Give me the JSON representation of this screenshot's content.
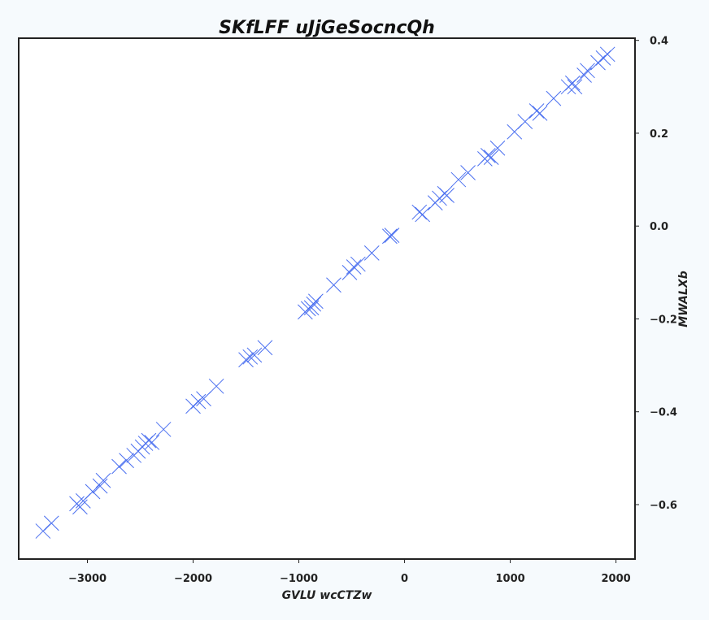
{
  "chart_data": {
    "type": "scatter",
    "title": "SKfLFF uJjGeSocncQh",
    "xlabel": "GVLU wcCTZw",
    "ylabel": "MWALXb",
    "xlim": [
      -3650,
      2180
    ],
    "ylim": [
      -0.7173,
      0.4047
    ],
    "y_axis_position": "right",
    "grid": false,
    "marker": "x",
    "colors": {
      "marker": "#4a6ff0",
      "frame": "#222222",
      "background": "#ffffff",
      "figure": "#f6fafd"
    },
    "x_ticks": [
      {
        "value": -3000,
        "label": "−3000"
      },
      {
        "value": -2000,
        "label": "−2000"
      },
      {
        "value": -1000,
        "label": "−1000"
      },
      {
        "value": 0,
        "label": "0"
      },
      {
        "value": 1000,
        "label": "1000"
      },
      {
        "value": 2000,
        "label": "2000"
      }
    ],
    "y_ticks": [
      {
        "value": 0.4,
        "label": "0.4"
      },
      {
        "value": 0.2,
        "label": "0.2"
      },
      {
        "value": 0.0,
        "label": "0.0"
      },
      {
        "value": -0.2,
        "label": "−0.2"
      },
      {
        "value": -0.4,
        "label": "−0.4"
      },
      {
        "value": -0.6,
        "label": "−0.6"
      }
    ],
    "points": [
      {
        "x": -3420,
        "y": -0.657
      },
      {
        "x": -3340,
        "y": -0.64
      },
      {
        "x": -3100,
        "y": -0.598
      },
      {
        "x": -3070,
        "y": -0.605
      },
      {
        "x": -3040,
        "y": -0.592
      },
      {
        "x": -2950,
        "y": -0.572
      },
      {
        "x": -2880,
        "y": -0.56
      },
      {
        "x": -2850,
        "y": -0.548
      },
      {
        "x": -2700,
        "y": -0.518
      },
      {
        "x": -2630,
        "y": -0.505
      },
      {
        "x": -2560,
        "y": -0.494
      },
      {
        "x": -2520,
        "y": -0.485
      },
      {
        "x": -2480,
        "y": -0.476
      },
      {
        "x": -2450,
        "y": -0.468
      },
      {
        "x": -2420,
        "y": -0.462
      },
      {
        "x": -2390,
        "y": -0.466
      },
      {
        "x": -2280,
        "y": -0.438
      },
      {
        "x": -2000,
        "y": -0.388
      },
      {
        "x": -1950,
        "y": -0.378
      },
      {
        "x": -1900,
        "y": -0.372
      },
      {
        "x": -1780,
        "y": -0.345
      },
      {
        "x": -1500,
        "y": -0.288
      },
      {
        "x": -1460,
        "y": -0.282
      },
      {
        "x": -1420,
        "y": -0.278
      },
      {
        "x": -1320,
        "y": -0.262
      },
      {
        "x": -940,
        "y": -0.185
      },
      {
        "x": -910,
        "y": -0.178
      },
      {
        "x": -880,
        "y": -0.176
      },
      {
        "x": -860,
        "y": -0.168
      },
      {
        "x": -840,
        "y": -0.162
      },
      {
        "x": -670,
        "y": -0.127
      },
      {
        "x": -520,
        "y": -0.1
      },
      {
        "x": -480,
        "y": -0.088
      },
      {
        "x": -440,
        "y": -0.082
      },
      {
        "x": -310,
        "y": -0.058
      },
      {
        "x": -140,
        "y": -0.022
      },
      {
        "x": -120,
        "y": -0.02
      },
      {
        "x": 140,
        "y": 0.03
      },
      {
        "x": 170,
        "y": 0.025
      },
      {
        "x": 290,
        "y": 0.05
      },
      {
        "x": 330,
        "y": 0.06
      },
      {
        "x": 380,
        "y": 0.07
      },
      {
        "x": 400,
        "y": 0.066
      },
      {
        "x": 510,
        "y": 0.1
      },
      {
        "x": 600,
        "y": 0.115
      },
      {
        "x": 760,
        "y": 0.145
      },
      {
        "x": 790,
        "y": 0.152
      },
      {
        "x": 820,
        "y": 0.148
      },
      {
        "x": 880,
        "y": 0.168
      },
      {
        "x": 1040,
        "y": 0.203
      },
      {
        "x": 1140,
        "y": 0.225
      },
      {
        "x": 1250,
        "y": 0.248
      },
      {
        "x": 1280,
        "y": 0.243
      },
      {
        "x": 1410,
        "y": 0.275
      },
      {
        "x": 1550,
        "y": 0.3
      },
      {
        "x": 1590,
        "y": 0.308
      },
      {
        "x": 1610,
        "y": 0.3
      },
      {
        "x": 1700,
        "y": 0.325
      },
      {
        "x": 1730,
        "y": 0.335
      },
      {
        "x": 1830,
        "y": 0.352
      },
      {
        "x": 1880,
        "y": 0.362
      },
      {
        "x": 1920,
        "y": 0.37
      }
    ]
  }
}
